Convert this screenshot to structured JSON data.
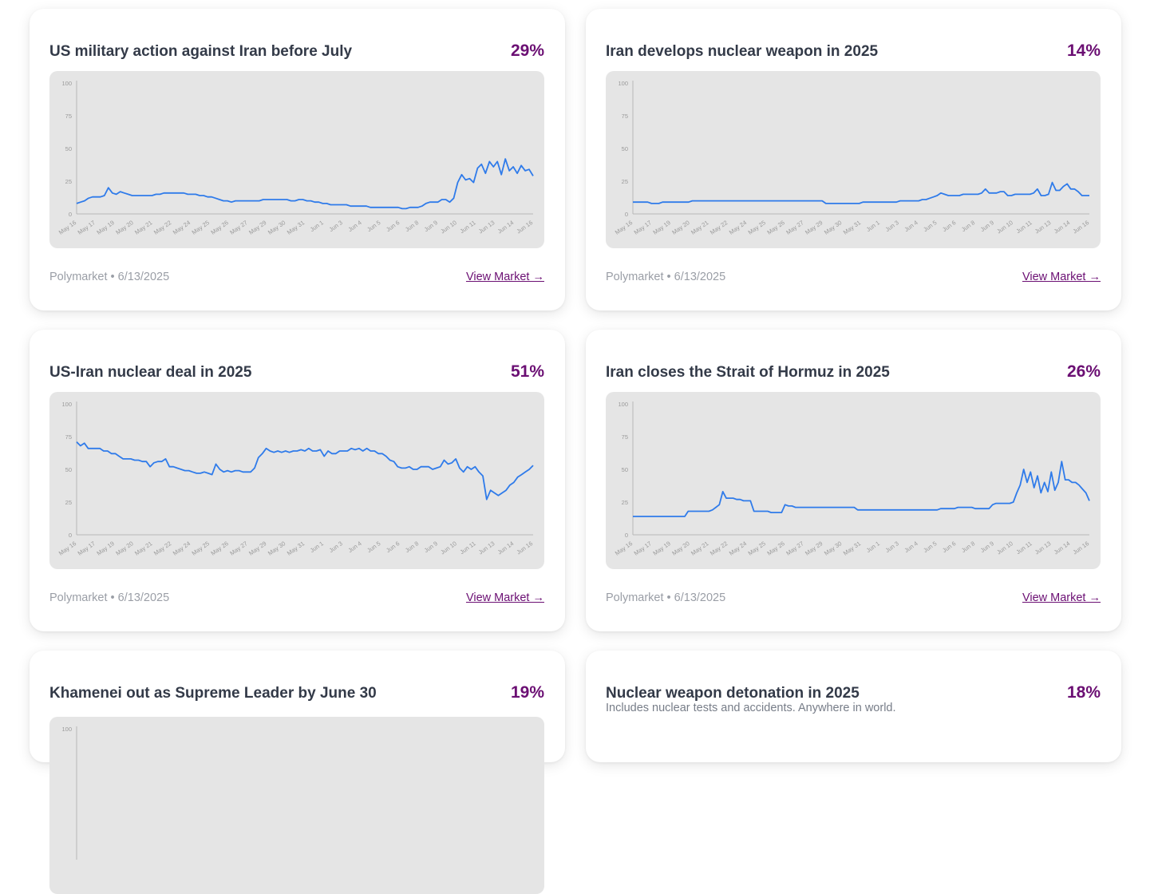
{
  "accent_color": "#6b0f73",
  "line_color": "#2f7bea",
  "markets": [
    {
      "title": "US military action against Iran before July",
      "probability": "29%",
      "subtitle": "",
      "source": "Polymarket",
      "date": "6/13/2025",
      "link_label": "View Market →",
      "chart_data": {
        "type": "line",
        "y_ticks": [
          "0",
          "25",
          "50",
          "75",
          "100"
        ],
        "ylim": [
          0,
          100
        ],
        "x_ticks": [
          "May 16",
          "May 17",
          "May 19",
          "May 20",
          "May 21",
          "May 22",
          "May 24",
          "May 25",
          "May 26",
          "May 27",
          "May 29",
          "May 30",
          "May 31",
          "Jun 1",
          "Jun 3",
          "Jun 4",
          "Jun 5",
          "Jun 6",
          "Jun 8",
          "Jun 9",
          "Jun 10",
          "Jun 11",
          "Jun 13",
          "Jun 14",
          "Jun 16"
        ],
        "series": [
          {
            "values": [
              8,
              9,
              10,
              12,
              13,
              13,
              13,
              14,
              20,
              16,
              15,
              17,
              16,
              15,
              14,
              14,
              14,
              14,
              14,
              14,
              15,
              15,
              16,
              16,
              16,
              16,
              16,
              16,
              15,
              15,
              15,
              14,
              14,
              13,
              13,
              12,
              11,
              10,
              10,
              9,
              10,
              10,
              10,
              10,
              10,
              10,
              10,
              11,
              11,
              11,
              11,
              11,
              11,
              11,
              10,
              10,
              11,
              11,
              10,
              10,
              9,
              9,
              8,
              8,
              7,
              7,
              7,
              7,
              7,
              6,
              6,
              6,
              6,
              6,
              5,
              5,
              5,
              5,
              5,
              5,
              5,
              5,
              4,
              4,
              5,
              5,
              5,
              6,
              8,
              9,
              9,
              9,
              11,
              11,
              9,
              12,
              24,
              30,
              26,
              27,
              24,
              35,
              38,
              31,
              40,
              36,
              40,
              30,
              42,
              33,
              36,
              31,
              37,
              33,
              34,
              29
            ]
          }
        ]
      }
    },
    {
      "title": "Iran develops nuclear weapon in 2025",
      "probability": "14%",
      "subtitle": "",
      "source": "Polymarket",
      "date": "6/13/2025",
      "link_label": "View Market →",
      "chart_data": {
        "type": "line",
        "y_ticks": [
          "0",
          "25",
          "50",
          "75",
          "100"
        ],
        "ylim": [
          0,
          100
        ],
        "x_ticks": [
          "May 16",
          "May 17",
          "May 19",
          "May 20",
          "May 21",
          "May 22",
          "May 24",
          "May 25",
          "May 26",
          "May 27",
          "May 29",
          "May 30",
          "May 31",
          "Jun 1",
          "Jun 3",
          "Jun 4",
          "Jun 5",
          "Jun 6",
          "Jun 8",
          "Jun 9",
          "Jun 10",
          "Jun 11",
          "Jun 13",
          "Jun 14",
          "Jun 16"
        ],
        "series": [
          {
            "values": [
              9,
              9,
              9,
              9,
              9,
              8,
              8,
              8,
              9,
              9,
              9,
              9,
              9,
              9,
              9,
              9,
              10,
              10,
              10,
              10,
              10,
              10,
              10,
              10,
              10,
              10,
              10,
              10,
              10,
              10,
              10,
              10,
              10,
              10,
              10,
              10,
              10,
              10,
              10,
              10,
              10,
              10,
              10,
              10,
              10,
              10,
              10,
              10,
              10,
              10,
              10,
              10,
              8,
              8,
              8,
              8,
              8,
              8,
              8,
              8,
              8,
              8,
              9,
              9,
              9,
              9,
              9,
              9,
              9,
              9,
              9,
              9,
              10,
              10,
              10,
              10,
              10,
              10,
              11,
              11,
              12,
              13,
              14,
              16,
              15,
              14,
              14,
              14,
              14,
              15,
              15,
              15,
              15,
              15,
              16,
              19,
              16,
              16,
              16,
              17,
              17,
              14,
              14,
              15,
              15,
              15,
              15,
              15,
              16,
              19,
              14,
              14,
              15,
              24,
              18,
              18,
              21,
              23,
              19,
              19,
              17,
              14,
              14,
              14
            ]
          }
        ]
      }
    },
    {
      "title": "US-Iran nuclear deal in 2025",
      "probability": "51%",
      "subtitle": "",
      "source": "Polymarket",
      "date": "6/13/2025",
      "link_label": "View Market →",
      "chart_data": {
        "type": "line",
        "y_ticks": [
          "0",
          "25",
          "50",
          "75",
          "100"
        ],
        "ylim": [
          0,
          100
        ],
        "x_ticks": [
          "May 16",
          "May 17",
          "May 19",
          "May 20",
          "May 21",
          "May 22",
          "May 24",
          "May 25",
          "May 26",
          "May 27",
          "May 29",
          "May 30",
          "May 31",
          "Jun 1",
          "Jun 3",
          "Jun 4",
          "Jun 5",
          "Jun 6",
          "Jun 8",
          "Jun 9",
          "Jun 10",
          "Jun 11",
          "Jun 13",
          "Jun 14",
          "Jun 16"
        ],
        "series": [
          {
            "values": [
              71,
              68,
              70,
              66,
              66,
              66,
              66,
              64,
              64,
              62,
              62,
              60,
              58,
              58,
              58,
              57,
              57,
              56,
              56,
              52,
              55,
              56,
              56,
              58,
              52,
              52,
              51,
              50,
              49,
              49,
              48,
              47,
              47,
              48,
              47,
              46,
              54,
              50,
              48,
              49,
              48,
              49,
              49,
              48,
              48,
              48,
              51,
              59,
              62,
              66,
              64,
              63,
              64,
              63,
              64,
              63,
              64,
              64,
              65,
              64,
              66,
              64,
              64,
              65,
              60,
              64,
              62,
              62,
              64,
              64,
              64,
              66,
              65,
              66,
              64,
              66,
              64,
              64,
              62,
              62,
              60,
              57,
              56,
              52,
              51,
              51,
              52,
              50,
              50,
              52,
              52,
              52,
              50,
              51,
              52,
              57,
              54,
              55,
              58,
              51,
              48,
              52,
              50,
              52,
              48,
              45,
              27,
              34,
              32,
              30,
              32,
              34,
              38,
              40,
              44,
              46,
              48,
              50,
              53
            ]
          }
        ]
      }
    },
    {
      "title": "Iran closes the Strait of Hormuz in 2025",
      "probability": "26%",
      "subtitle": "",
      "source": "Polymarket",
      "date": "6/13/2025",
      "link_label": "View Market →",
      "chart_data": {
        "type": "line",
        "y_ticks": [
          "0",
          "25",
          "50",
          "75",
          "100"
        ],
        "ylim": [
          0,
          100
        ],
        "x_ticks": [
          "May 16",
          "May 17",
          "May 19",
          "May 20",
          "May 21",
          "May 22",
          "May 24",
          "May 25",
          "May 26",
          "May 27",
          "May 29",
          "May 30",
          "May 31",
          "Jun 1",
          "Jun 3",
          "Jun 4",
          "Jun 5",
          "Jun 6",
          "Jun 8",
          "Jun 9",
          "Jun 10",
          "Jun 11",
          "Jun 13",
          "Jun 14",
          "Jun 16"
        ],
        "series": [
          {
            "values": [
              14,
              14,
              14,
              14,
              14,
              14,
              14,
              14,
              14,
              14,
              14,
              14,
              14,
              14,
              14,
              14,
              18,
              18,
              18,
              18,
              18,
              18,
              18,
              19,
              21,
              23,
              33,
              28,
              28,
              28,
              27,
              27,
              26,
              26,
              26,
              18,
              18,
              18,
              18,
              18,
              17,
              17,
              17,
              17,
              23,
              22,
              22,
              21,
              21,
              21,
              21,
              21,
              21,
              21,
              21,
              21,
              21,
              21,
              21,
              21,
              21,
              21,
              21,
              21,
              21,
              19,
              19,
              19,
              19,
              19,
              19,
              19,
              19,
              19,
              19,
              19,
              19,
              19,
              19,
              19,
              19,
              19,
              19,
              19,
              19,
              19,
              19,
              19,
              19,
              20,
              20,
              20,
              20,
              20,
              21,
              21,
              21,
              21,
              21,
              20,
              20,
              20,
              20,
              20,
              23,
              24,
              24,
              24,
              24,
              24,
              25,
              32,
              38,
              50,
              40,
              48,
              36,
              45,
              32,
              40,
              33,
              48,
              34,
              40,
              56,
              42,
              42,
              40,
              40,
              38,
              35,
              32,
              26
            ]
          }
        ]
      }
    },
    {
      "title": "Khamenei out as Supreme Leader by June 30",
      "probability": "19%",
      "subtitle": "",
      "source": "",
      "date": "",
      "link_label": "",
      "chart_data": {
        "type": "line",
        "y_ticks": [
          "100"
        ],
        "ylim": [
          0,
          100
        ],
        "x_ticks": [],
        "series": []
      }
    },
    {
      "title": "Nuclear weapon detonation in 2025",
      "probability": "18%",
      "subtitle": "Includes nuclear tests and accidents. Anywhere in world.",
      "source": "",
      "date": "",
      "link_label": "",
      "chart_data": {
        "type": "line",
        "y_ticks": [],
        "ylim": [
          0,
          100
        ],
        "x_ticks": [],
        "series": []
      }
    }
  ]
}
